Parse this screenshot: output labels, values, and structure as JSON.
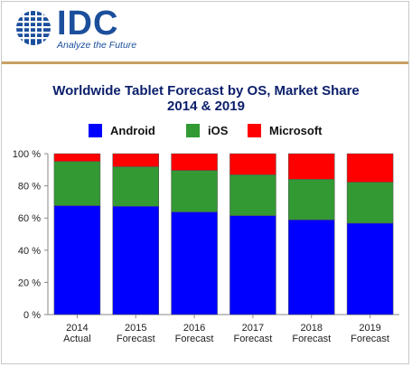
{
  "header": {
    "logo_text": "IDC",
    "tagline": "Analyze the Future"
  },
  "colors": {
    "android": "#0000ff",
    "ios": "#339933",
    "microsoft": "#ff0000",
    "title": "#0b1f6b",
    "brand": "#1b4f9c",
    "rule": "#c8a063"
  },
  "chart_data": {
    "type": "bar",
    "stacked": true,
    "title": "Worldwide Tablet Forecast by OS, Market Share",
    "subtitle": "2014 & 2019",
    "categories": [
      [
        "2014",
        "Actual"
      ],
      [
        "2015",
        "Forecast"
      ],
      [
        "2016",
        "Forecast"
      ],
      [
        "2017",
        "Forecast"
      ],
      [
        "2018",
        "Forecast"
      ],
      [
        "2019",
        "Forecast"
      ]
    ],
    "series": [
      {
        "name": "Android",
        "color": "#0000ff",
        "values": [
          67.7,
          67.3,
          63.8,
          61.5,
          58.9,
          56.8
        ]
      },
      {
        "name": "iOS",
        "color": "#339933",
        "values": [
          27.5,
          24.6,
          25.8,
          25.4,
          25.2,
          25.5
        ]
      },
      {
        "name": "Microsoft",
        "color": "#ff0000",
        "values": [
          4.8,
          8.1,
          10.4,
          13.1,
          15.9,
          17.7
        ]
      }
    ],
    "yticks": [
      "0 %",
      "20 %",
      "40 %",
      "60 %",
      "80 %",
      "100 %"
    ],
    "ylim": [
      0,
      100
    ],
    "legend_position": "top",
    "grid": false
  }
}
